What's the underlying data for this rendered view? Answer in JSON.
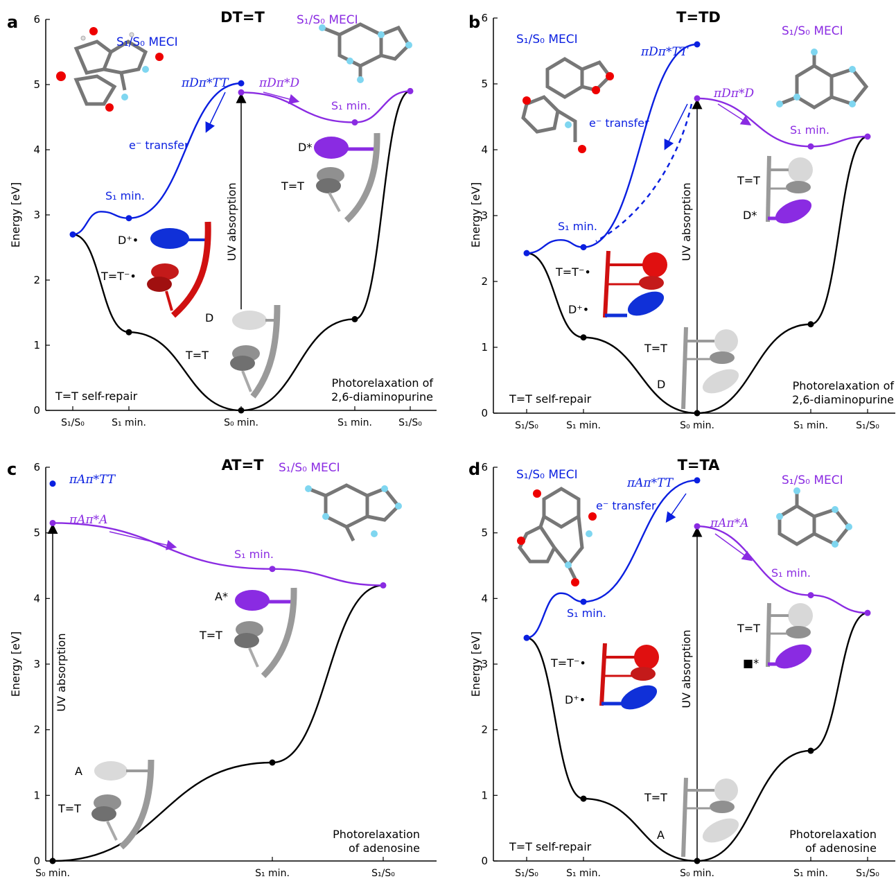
{
  "colors": {
    "blue": "#0a1fe0",
    "purple": "#8a2be2",
    "black": "#000000",
    "red": "#cc0000",
    "grey": "#9a9a9a",
    "cyan": "#7fd6f0"
  },
  "chart_data": [
    {
      "panel": "a",
      "type": "line",
      "title": "DT=T",
      "ylabel": "Energy [eV]",
      "ylim": [
        0,
        6
      ],
      "yticks": [
        "0",
        "1",
        "2",
        "3",
        "4",
        "5",
        "6"
      ],
      "xticks": [
        "S₁/S₀",
        "S₁ min.",
        "S₀ min.",
        "S₁ min.",
        "S₁/S₀"
      ],
      "tick_pos": [
        0,
        1,
        3,
        5,
        6
      ],
      "series": [
        {
          "color": "black",
          "x": [
            0,
            1,
            3,
            5,
            6
          ],
          "y": [
            2.7,
            1.2,
            0,
            1.4,
            4.9
          ],
          "markers": [
            false,
            true,
            true,
            true,
            false
          ]
        },
        {
          "color": "blue",
          "x": [
            0,
            0.5,
            1,
            3
          ],
          "y": [
            2.7,
            3.05,
            2.95,
            5.02
          ],
          "markers": [
            true,
            false,
            true,
            true
          ]
        },
        {
          "color": "purple",
          "x": [
            3,
            5,
            6
          ],
          "y": [
            4.88,
            4.42,
            4.9
          ],
          "markers": [
            true,
            true,
            true
          ]
        }
      ],
      "annotations": {
        "meci_left": "S₁/S₀ MECI",
        "meci_right": "S₁/S₀ MECI",
        "s1_min_blue": "S₁ min.",
        "s1_min_purple": "S₁ min.",
        "etransfer": "e⁻ transfer",
        "uv": "UV absorption",
        "state_blue": "πDπ*TT",
        "state_purple": "πDπ*D",
        "left_process": "T=T self-repair",
        "right_process_1": "Photorelaxation of",
        "right_process_2": "2,6-diaminopurine",
        "mol_labels": [
          "D⁺•",
          "T=T⁻•",
          "D",
          "T=T",
          "D*",
          "T=T"
        ]
      }
    },
    {
      "panel": "b",
      "type": "line",
      "title": "T=TD",
      "ylabel": "Energy [eV]",
      "ylim": [
        0,
        6
      ],
      "yticks": [
        "0",
        "1",
        "2",
        "3",
        "4",
        "5",
        "6"
      ],
      "xticks": [
        "S₁/S₀",
        "S₁ min.",
        "S₀ min.",
        "S₁ min.",
        "S₁/S₀"
      ],
      "tick_pos": [
        0,
        1,
        3,
        5,
        6
      ],
      "series": [
        {
          "color": "black",
          "x": [
            0,
            1,
            3,
            5,
            6
          ],
          "y": [
            2.43,
            1.15,
            0,
            1.35,
            4.2
          ],
          "markers": [
            false,
            true,
            true,
            true,
            false
          ]
        },
        {
          "color": "blue",
          "x": [
            0,
            0.6,
            1,
            3
          ],
          "y": [
            2.43,
            2.63,
            2.52,
            5.6
          ],
          "markers": [
            true,
            false,
            true,
            true
          ]
        },
        {
          "color": "purple",
          "x": [
            3,
            5,
            6
          ],
          "y": [
            4.78,
            4.05,
            4.2
          ],
          "markers": [
            true,
            true,
            true
          ]
        }
      ],
      "annotations": {
        "meci_left": "S₁/S₀ MECI",
        "meci_right": "S₁/S₀ MECI",
        "s1_min_blue": "S₁ min.",
        "s1_min_purple": "S₁ min.",
        "etransfer": "e⁻ transfer",
        "uv": "UV absorption",
        "state_blue": "πDπ*TT",
        "state_purple": "πDπ*D",
        "left_process": "T=T self-repair",
        "right_process_1": "Photorelaxation of",
        "right_process_2": "2,6-diaminopurine",
        "mol_labels": [
          "T=T⁻•",
          "D⁺•",
          "T=T",
          "D",
          "T=T",
          "D*"
        ]
      }
    },
    {
      "panel": "c",
      "type": "line",
      "title": "AT=T",
      "ylabel": "Energy [eV]",
      "ylim": [
        0,
        6
      ],
      "yticks": [
        "0",
        "1",
        "2",
        "3",
        "4",
        "5",
        "6"
      ],
      "xticks": [
        "S₀ min.",
        "S₁ min.",
        "S₁/S₀"
      ],
      "tick_pos": [
        0,
        2,
        3
      ],
      "series": [
        {
          "color": "black",
          "x": [
            0,
            2,
            3
          ],
          "y": [
            0,
            1.5,
            4.2
          ],
          "markers": [
            true,
            true,
            false
          ]
        },
        {
          "color": "blue",
          "x": [
            0
          ],
          "y": [
            5.75
          ],
          "markers": [
            true
          ]
        },
        {
          "color": "purple",
          "x": [
            0,
            2,
            3
          ],
          "y": [
            5.15,
            4.45,
            4.2
          ],
          "markers": [
            true,
            true,
            true
          ]
        }
      ],
      "annotations": {
        "meci_right": "S₁/S₀ MECI",
        "s1_min_purple": "S₁ min.",
        "uv": "UV absorption",
        "state_blue": "πAπ*TT",
        "state_purple": "πAπ*A",
        "right_process_1": "Photorelaxation",
        "right_process_2": "of adenosine",
        "mol_labels": [
          "A*",
          "T=T",
          "A",
          "T=T"
        ]
      }
    },
    {
      "panel": "d",
      "type": "line",
      "title": "T=TA",
      "ylabel": "Energy [eV]",
      "ylim": [
        0,
        6
      ],
      "yticks": [
        "0",
        "1",
        "2",
        "3",
        "4",
        "5",
        "6"
      ],
      "xticks": [
        "S₁/S₀",
        "S₁ min.",
        "S₀ min.",
        "S₁ min.",
        "S₁/S₀"
      ],
      "tick_pos": [
        0,
        1,
        3,
        5,
        6
      ],
      "series": [
        {
          "color": "black",
          "x": [
            0,
            1,
            3,
            5,
            6
          ],
          "y": [
            3.4,
            0.95,
            0,
            1.68,
            3.78
          ],
          "markers": [
            false,
            true,
            true,
            true,
            false
          ]
        },
        {
          "color": "blue",
          "x": [
            0,
            0.6,
            1,
            3
          ],
          "y": [
            3.4,
            4.08,
            3.95,
            5.8
          ],
          "markers": [
            true,
            false,
            true,
            true
          ]
        },
        {
          "color": "purple",
          "x": [
            3,
            5,
            6
          ],
          "y": [
            5.1,
            4.05,
            3.78
          ],
          "markers": [
            true,
            true,
            true
          ]
        }
      ],
      "annotations": {
        "meci_left": "S₁/S₀ MECI",
        "meci_right": "S₁/S₀ MECI",
        "s1_min_blue": "S₁ min.",
        "s1_min_purple": "S₁ min.",
        "etransfer": "e⁻ transfer",
        "uv": "UV absorption",
        "state_blue": "πAπ*TT",
        "state_purple": "πAπ*A",
        "left_process": "T=T self-repair",
        "right_process_1": "Photorelaxation",
        "right_process_2": "of adenosine",
        "mol_labels": [
          "T=T⁻•",
          "D⁺•",
          "T=T",
          "A",
          "T=T",
          "■*"
        ]
      }
    }
  ]
}
